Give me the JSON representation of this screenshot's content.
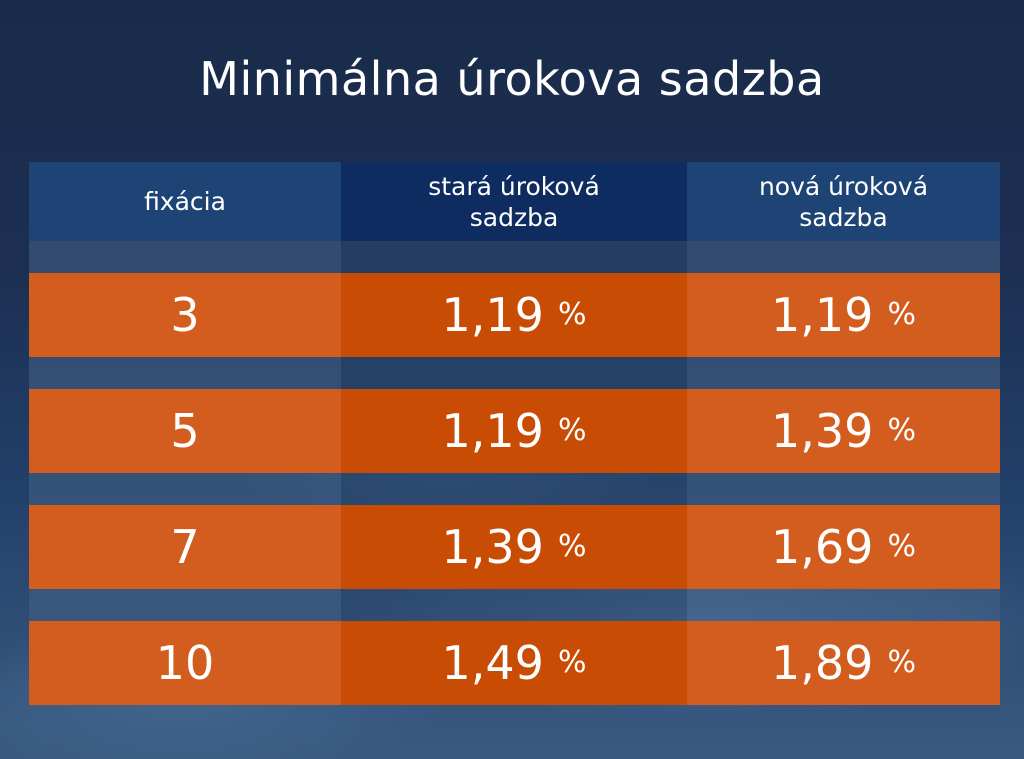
{
  "title": "Minimálna úrokova sadzba",
  "columns": {
    "fixation": "fixácia",
    "old_rate": [
      "stará úroková",
      "sadzba"
    ],
    "new_rate": [
      "nová úroková",
      "sadzba"
    ]
  },
  "percent_sign": "%",
  "rows": [
    {
      "fixation": "3",
      "old_rate": "1,19",
      "new_rate": "1,19"
    },
    {
      "fixation": "5",
      "old_rate": "1,19",
      "new_rate": "1,39"
    },
    {
      "fixation": "7",
      "old_rate": "1,39",
      "new_rate": "1,69"
    },
    {
      "fixation": "10",
      "old_rate": "1,49",
      "new_rate": "1,89"
    }
  ],
  "colors": {
    "header_blue": "#1d4474",
    "header_dark_blue": "#0e2c60",
    "row_orange": "#d35d1e",
    "row_dark_orange": "#c94c04"
  }
}
